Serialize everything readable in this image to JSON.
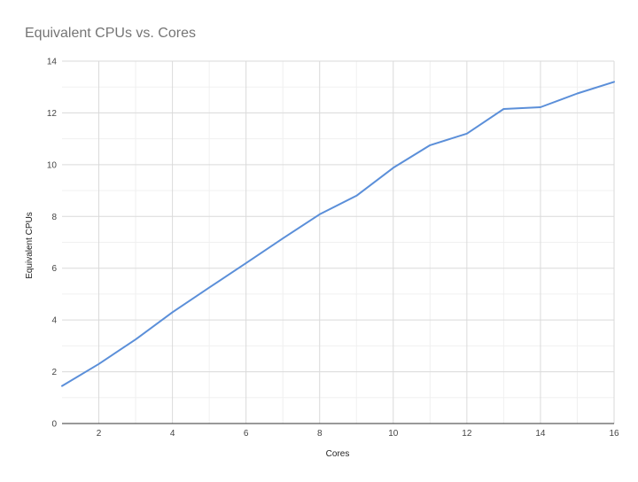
{
  "chart_data": {
    "type": "line",
    "title": "Equivalent CPUs vs. Cores",
    "xlabel": "Cores",
    "ylabel": "Equivalent CPUs",
    "x": [
      1,
      2,
      3,
      4,
      5,
      6,
      7,
      8,
      9,
      10,
      11,
      12,
      13,
      14,
      15,
      16
    ],
    "series": [
      {
        "values": [
          1.45,
          2.3,
          3.25,
          4.3,
          5.25,
          6.2,
          7.15,
          8.08,
          8.8,
          9.88,
          10.75,
          11.2,
          12.15,
          12.22,
          12.75,
          13.2
        ]
      }
    ],
    "xlim": [
      1,
      16
    ],
    "ylim": [
      0,
      14
    ],
    "x_ticks": [
      2,
      4,
      6,
      8,
      10,
      12,
      14,
      16
    ],
    "y_ticks": [
      0,
      2,
      4,
      6,
      8,
      10,
      12,
      14
    ],
    "grid": true,
    "colors": {
      "line": "#5b8fd9",
      "grid_major": "#dadada",
      "grid_minor": "#f0f0f0",
      "axis": "#333333"
    }
  }
}
